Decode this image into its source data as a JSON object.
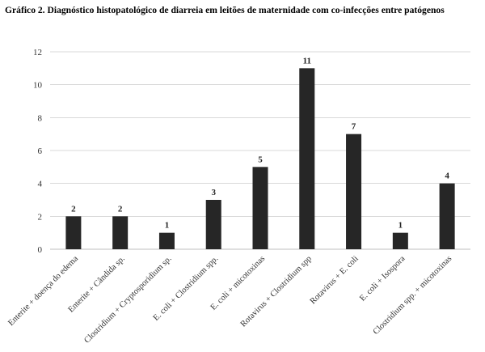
{
  "chart_data": {
    "type": "bar",
    "title": "Gráfico 2. Diagnóstico histopatológico de diarreia em leitões de maternidade com co-infecções entre patógenos",
    "xlabel": "",
    "ylabel": "",
    "ylim": [
      0,
      12
    ],
    "yticks": [
      0,
      2,
      4,
      6,
      8,
      10,
      12
    ],
    "grid": true,
    "legend": "none",
    "bar_color": "#262626",
    "categories": [
      "Enterite + doença do edema",
      "Enterite + Cândida sp.",
      "Clostridium + Cryptosporidium sp.",
      "E. coli + Clostridium spp.",
      "E. coli + micotoxinas",
      "Rotavirus + Clostridium spp",
      "Rotavirus + E. coli",
      "E. coli + Isospora",
      "Clostridium spp. + micotoxinas"
    ],
    "values": [
      2,
      2,
      1,
      3,
      5,
      11,
      7,
      1,
      4
    ]
  }
}
